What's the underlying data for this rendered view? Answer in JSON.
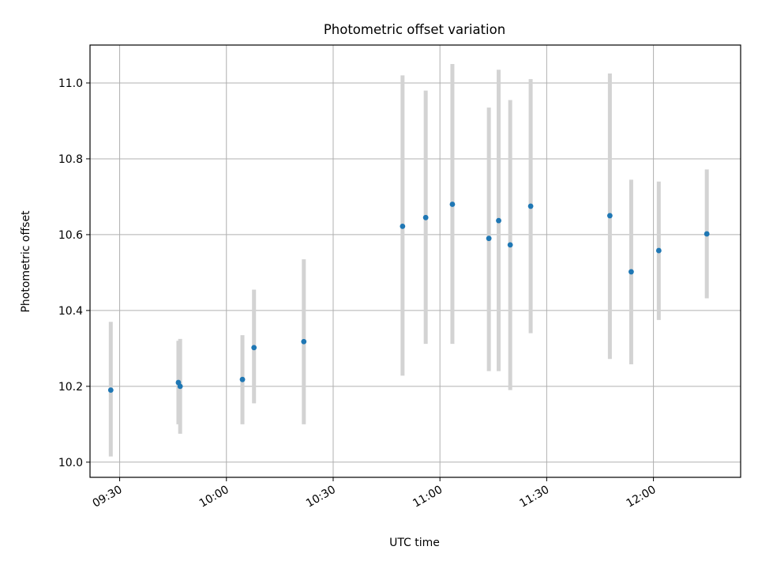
{
  "chart_data": {
    "type": "scatter",
    "title": "Photometric offset variation",
    "xlabel": "UTC time",
    "ylabel": "Photometric offset",
    "x_axis": {
      "kind": "time",
      "range": [
        "09:21:40",
        "12:24:30"
      ],
      "ticks": [
        "09:30",
        "10:00",
        "10:30",
        "11:00",
        "11:30",
        "12:00"
      ]
    },
    "y_axis": {
      "range": [
        9.96,
        11.1
      ],
      "ticks": [
        "10.0",
        "10.2",
        "10.4",
        "10.6",
        "10.8",
        "11.0"
      ]
    },
    "grid": true,
    "marker_color": "#1f77b4",
    "errorbar_color": "#d3d3d3",
    "points": [
      {
        "time": "09:27:30",
        "y": 10.19,
        "low": 10.015,
        "high": 10.37
      },
      {
        "time": "09:46:30",
        "y": 10.21,
        "low": 10.1,
        "high": 10.32
      },
      {
        "time": "09:47:00",
        "y": 10.2,
        "low": 10.075,
        "high": 10.325
      },
      {
        "time": "10:04:30",
        "y": 10.218,
        "low": 10.1,
        "high": 10.335
      },
      {
        "time": "10:07:45",
        "y": 10.302,
        "low": 10.155,
        "high": 10.455
      },
      {
        "time": "10:21:45",
        "y": 10.318,
        "low": 10.1,
        "high": 10.535
      },
      {
        "time": "10:49:30",
        "y": 10.622,
        "low": 10.228,
        "high": 11.02
      },
      {
        "time": "10:56:00",
        "y": 10.645,
        "low": 10.312,
        "high": 10.98
      },
      {
        "time": "11:03:30",
        "y": 10.68,
        "low": 10.312,
        "high": 11.05
      },
      {
        "time": "11:13:45",
        "y": 10.59,
        "low": 10.24,
        "high": 10.935
      },
      {
        "time": "11:16:30",
        "y": 10.637,
        "low": 10.24,
        "high": 11.035
      },
      {
        "time": "11:19:45",
        "y": 10.573,
        "low": 10.19,
        "high": 10.955
      },
      {
        "time": "11:25:30",
        "y": 10.675,
        "low": 10.34,
        "high": 11.01
      },
      {
        "time": "11:47:45",
        "y": 10.65,
        "low": 10.272,
        "high": 11.025
      },
      {
        "time": "11:53:45",
        "y": 10.502,
        "low": 10.258,
        "high": 10.745
      },
      {
        "time": "12:01:30",
        "y": 10.558,
        "low": 10.375,
        "high": 10.74
      },
      {
        "time": "12:15:00",
        "y": 10.602,
        "low": 10.432,
        "high": 10.772
      }
    ]
  }
}
